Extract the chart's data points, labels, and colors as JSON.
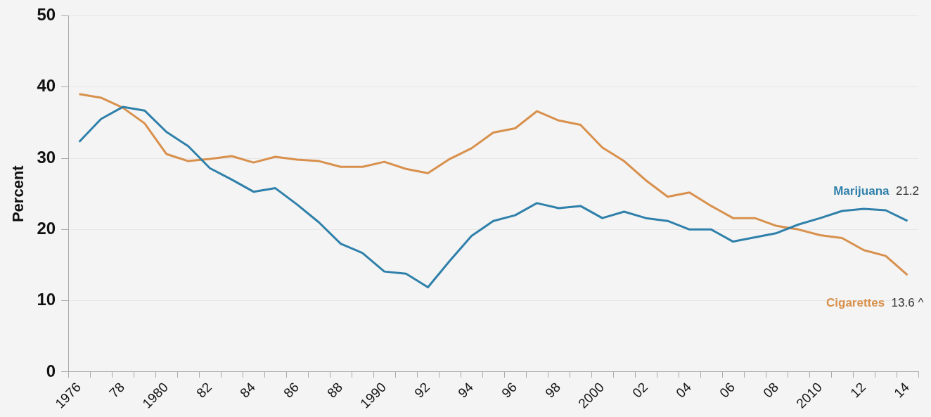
{
  "chart_data": {
    "type": "line",
    "ylabel": "Percent",
    "categories": [
      "1976",
      null,
      "78",
      null,
      "1980",
      null,
      "82",
      null,
      "84",
      null,
      "86",
      null,
      "88",
      null,
      "1990",
      null,
      "92",
      null,
      "94",
      null,
      "96",
      null,
      "98",
      null,
      "2000",
      null,
      "02",
      null,
      "04",
      null,
      "06",
      null,
      "08",
      null,
      "2010",
      null,
      "12",
      null,
      "14"
    ],
    "series": [
      {
        "name": "Marijuana",
        "color": "#2f80aa",
        "values": [
          32.3,
          35.5,
          37.2,
          36.7,
          33.7,
          31.7,
          28.6,
          27.0,
          25.3,
          25.8,
          23.5,
          21.0,
          18.0,
          16.7,
          14.1,
          13.8,
          11.9,
          15.6,
          19.1,
          21.2,
          22.0,
          23.7,
          23.0,
          23.3,
          21.6,
          22.5,
          21.6,
          21.2,
          20.0,
          20.0,
          18.3,
          18.9,
          19.5,
          20.7,
          21.6,
          22.6,
          22.9,
          22.7,
          21.2
        ],
        "value_labels": [
          null,
          null,
          null,
          null,
          null,
          null,
          null,
          null,
          null,
          null,
          null,
          null,
          null,
          null,
          null,
          null,
          null,
          null,
          null,
          null,
          null,
          null,
          null,
          null,
          null,
          null,
          null,
          null,
          null,
          null,
          null,
          null,
          null,
          null,
          null,
          null,
          null,
          null,
          "21.2"
        ]
      },
      {
        "name": "Cigarettes",
        "color": "#d8904c",
        "values": [
          39.0,
          38.5,
          37.1,
          34.9,
          30.6,
          29.6,
          29.9,
          30.3,
          29.4,
          30.2,
          29.8,
          29.6,
          28.8,
          28.8,
          29.5,
          28.5,
          27.9,
          29.9,
          31.4,
          33.6,
          34.2,
          36.6,
          35.3,
          34.7,
          31.5,
          29.6,
          26.9,
          24.6,
          25.2,
          23.3,
          21.6,
          21.6,
          20.5,
          20.0,
          19.2,
          18.8,
          17.1,
          16.3,
          13.6
        ],
        "value_labels": [
          null,
          null,
          null,
          null,
          null,
          null,
          null,
          null,
          null,
          null,
          null,
          null,
          null,
          null,
          null,
          null,
          null,
          null,
          null,
          null,
          null,
          null,
          null,
          null,
          null,
          null,
          null,
          null,
          null,
          null,
          null,
          null,
          null,
          null,
          null,
          null,
          null,
          null,
          "13.6 ^"
        ]
      }
    ],
    "ylim": [
      0,
      50
    ],
    "yticks": [
      0,
      10,
      20,
      30,
      40,
      50
    ],
    "grid": "y",
    "legend": false,
    "marker": "none",
    "line_style": "solid"
  }
}
